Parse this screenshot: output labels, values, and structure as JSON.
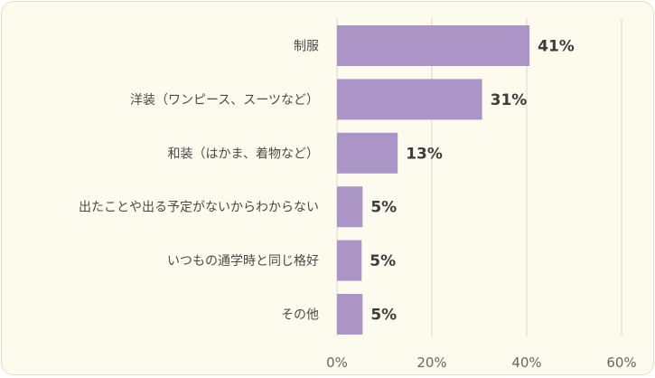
{
  "chart_data": {
    "type": "bar",
    "orientation": "horizontal",
    "categories": [
      "制服",
      "洋装（ワンピース、スーツなど）",
      "和装（はかま、着物など）",
      "出たことや出る予定がないからわからない",
      "いつもの通学時と同じ格好",
      "その他"
    ],
    "values": [
      41,
      31,
      13,
      5,
      5,
      5
    ],
    "value_labels": [
      "41%",
      "31%",
      "13%",
      "5%",
      "5%",
      "5%"
    ],
    "bar_values_exact": [
      40.6,
      30.6,
      12.8,
      5.4,
      5.2,
      5.4
    ],
    "xlim": [
      0,
      60
    ],
    "xticks": [
      0,
      20,
      40,
      60
    ],
    "xtick_labels": [
      "0%",
      "20%",
      "40%",
      "60%"
    ],
    "grid": true,
    "colors": {
      "bar": "#ab94c6",
      "background": "#fdfbee",
      "grid": "#d8d8d0"
    }
  }
}
